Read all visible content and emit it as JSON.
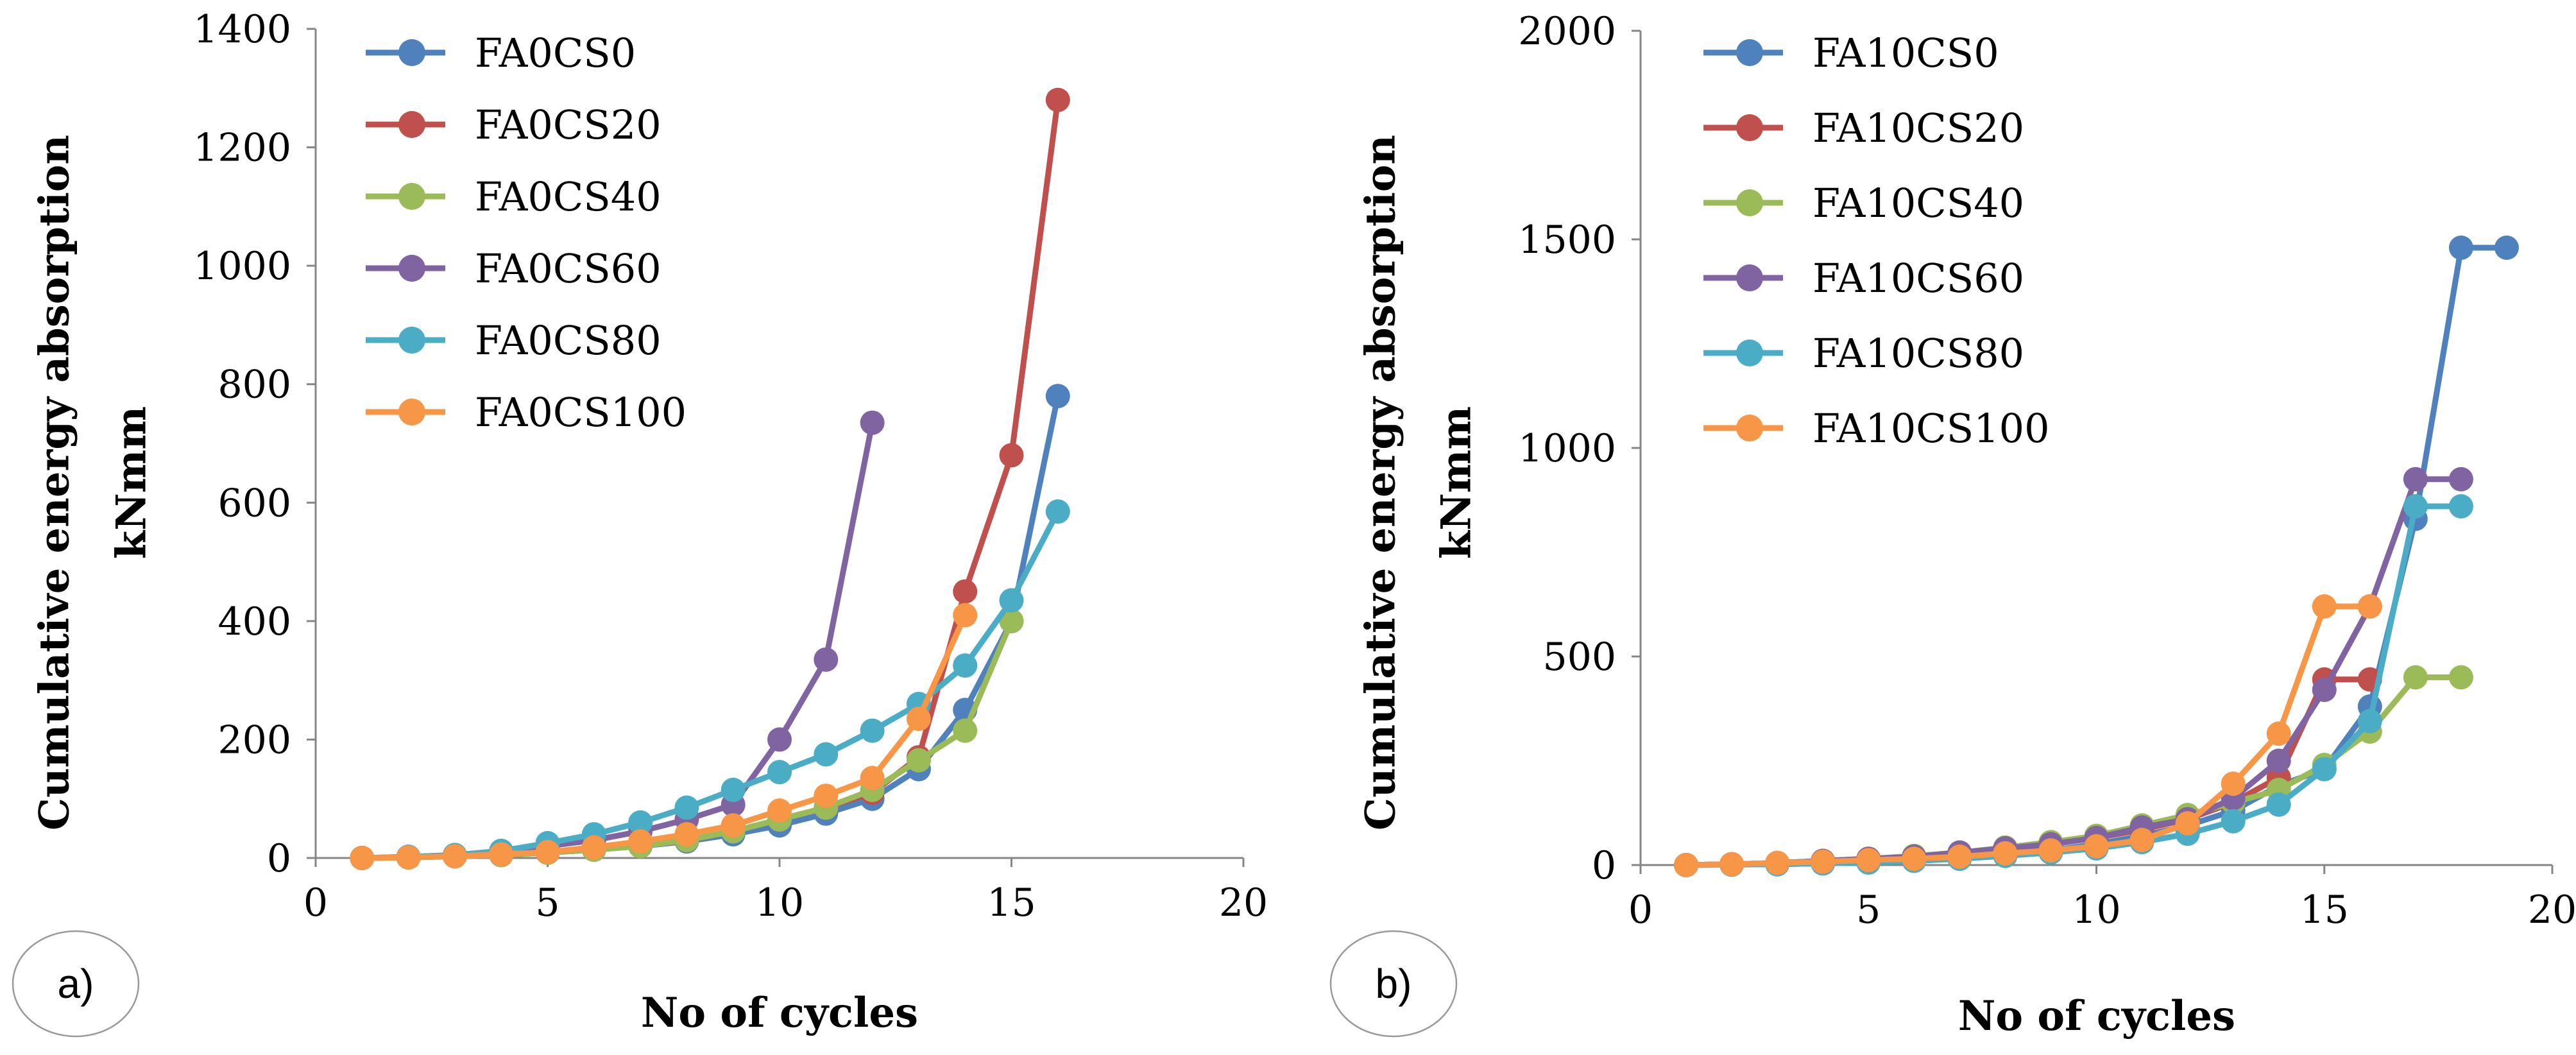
{
  "figure": {
    "panels": [
      {
        "label": "a)"
      },
      {
        "label": "b)"
      }
    ]
  },
  "chart_data": [
    {
      "type": "line",
      "panel_label": "a)",
      "xlabel": "No of cycles",
      "ylabel": "Cumulative energy absorption",
      "ylabel_unit": "kNmm",
      "xlim": [
        0,
        20
      ],
      "ylim": [
        0,
        1400
      ],
      "xticks": [
        0,
        5,
        10,
        15,
        20
      ],
      "yticks": [
        0,
        200,
        400,
        600,
        800,
        1000,
        1200,
        1400
      ],
      "legend_position": "top-left",
      "grid": false,
      "series": [
        {
          "name": "FA0CS0",
          "color": "#4F81BD",
          "x": [
            1,
            2,
            3,
            4,
            5,
            6,
            7,
            8,
            9,
            10,
            11,
            12,
            13,
            14,
            15,
            16
          ],
          "y": [
            0,
            1,
            3,
            6,
            10,
            15,
            20,
            28,
            40,
            55,
            75,
            100,
            150,
            250,
            400,
            780
          ]
        },
        {
          "name": "FA0CS20",
          "color": "#C0504D",
          "x": [
            1,
            2,
            3,
            4,
            5,
            6,
            7,
            8,
            9,
            10,
            11,
            12,
            13,
            14,
            15,
            16
          ],
          "y": [
            0,
            1,
            3,
            5,
            9,
            14,
            20,
            30,
            45,
            65,
            85,
            110,
            170,
            450,
            680,
            1280
          ]
        },
        {
          "name": "FA0CS40",
          "color": "#9BBB59",
          "x": [
            1,
            2,
            3,
            4,
            5,
            6,
            7,
            8,
            9,
            10,
            11,
            12,
            13,
            14,
            15
          ],
          "y": [
            0,
            1,
            3,
            5,
            9,
            14,
            20,
            30,
            45,
            65,
            85,
            115,
            165,
            215,
            400
          ]
        },
        {
          "name": "FA0CS60",
          "color": "#8064A2",
          "x": [
            1,
            2,
            3,
            4,
            5,
            6,
            7,
            8,
            9,
            10,
            11,
            12
          ],
          "y": [
            0,
            2,
            5,
            10,
            20,
            30,
            45,
            65,
            90,
            200,
            335,
            735
          ]
        },
        {
          "name": "FA0CS80",
          "color": "#4BACC6",
          "x": [
            1,
            2,
            3,
            4,
            5,
            6,
            7,
            8,
            9,
            10,
            11,
            12,
            13,
            14,
            15,
            16
          ],
          "y": [
            0,
            2,
            5,
            12,
            25,
            40,
            60,
            85,
            115,
            145,
            175,
            215,
            260,
            325,
            435,
            585
          ]
        },
        {
          "name": "FA0CS100",
          "color": "#F79646",
          "x": [
            1,
            2,
            3,
            4,
            5,
            6,
            7,
            8,
            9,
            10,
            11,
            12,
            13,
            14
          ],
          "y": [
            0,
            1,
            3,
            6,
            10,
            18,
            28,
            40,
            55,
            80,
            105,
            135,
            235,
            410
          ]
        }
      ]
    },
    {
      "type": "line",
      "panel_label": "b)",
      "xlabel": "No of cycles",
      "ylabel": "Cumulative energy absorption",
      "ylabel_unit": "kNmm",
      "xlim": [
        0,
        20
      ],
      "ylim": [
        0,
        2000
      ],
      "xticks": [
        0,
        5,
        10,
        15,
        20
      ],
      "yticks": [
        0,
        500,
        1000,
        1500,
        2000
      ],
      "legend_position": "top-left",
      "grid": false,
      "series": [
        {
          "name": "FA10CS0",
          "color": "#4F81BD",
          "x": [
            1,
            2,
            3,
            4,
            5,
            6,
            7,
            8,
            9,
            10,
            11,
            12,
            13,
            14,
            15,
            16,
            17,
            18,
            19
          ],
          "y": [
            0,
            1,
            2,
            4,
            8,
            12,
            18,
            25,
            35,
            50,
            70,
            95,
            130,
            190,
            230,
            380,
            830,
            1480,
            1480
          ]
        },
        {
          "name": "FA10CS20",
          "color": "#C0504D",
          "x": [
            1,
            2,
            3,
            4,
            5,
            6,
            7,
            8,
            9,
            10,
            11,
            12,
            13,
            14,
            15,
            16
          ],
          "y": [
            0,
            2,
            5,
            10,
            15,
            20,
            28,
            38,
            50,
            65,
            85,
            110,
            150,
            210,
            445,
            445
          ]
        },
        {
          "name": "FA10CS40",
          "color": "#9BBB59",
          "x": [
            1,
            2,
            3,
            4,
            5,
            6,
            7,
            8,
            9,
            10,
            11,
            12,
            13,
            14,
            15,
            16,
            17,
            18
          ],
          "y": [
            0,
            2,
            5,
            10,
            15,
            22,
            30,
            42,
            55,
            70,
            95,
            120,
            150,
            180,
            240,
            320,
            450,
            450
          ]
        },
        {
          "name": "FA10CS60",
          "color": "#8064A2",
          "x": [
            1,
            2,
            3,
            4,
            5,
            6,
            7,
            8,
            9,
            10,
            11,
            12,
            13,
            14,
            15,
            16,
            17,
            18
          ],
          "y": [
            0,
            2,
            5,
            10,
            15,
            20,
            30,
            40,
            50,
            65,
            90,
            110,
            160,
            250,
            420,
            620,
            925,
            925
          ]
        },
        {
          "name": "FA10CS80",
          "color": "#4BACC6",
          "x": [
            1,
            2,
            3,
            4,
            5,
            6,
            7,
            8,
            9,
            10,
            11,
            12,
            13,
            14,
            15,
            16,
            17,
            18
          ],
          "y": [
            0,
            1,
            2,
            4,
            6,
            10,
            15,
            22,
            30,
            40,
            55,
            75,
            105,
            145,
            230,
            345,
            860,
            860
          ]
        },
        {
          "name": "FA10CS100",
          "color": "#F79646",
          "x": [
            1,
            2,
            3,
            4,
            5,
            6,
            7,
            8,
            9,
            10,
            11,
            12,
            13,
            14,
            15,
            16
          ],
          "y": [
            0,
            2,
            5,
            8,
            12,
            15,
            20,
            28,
            35,
            45,
            60,
            100,
            195,
            315,
            620,
            620
          ]
        }
      ]
    }
  ]
}
